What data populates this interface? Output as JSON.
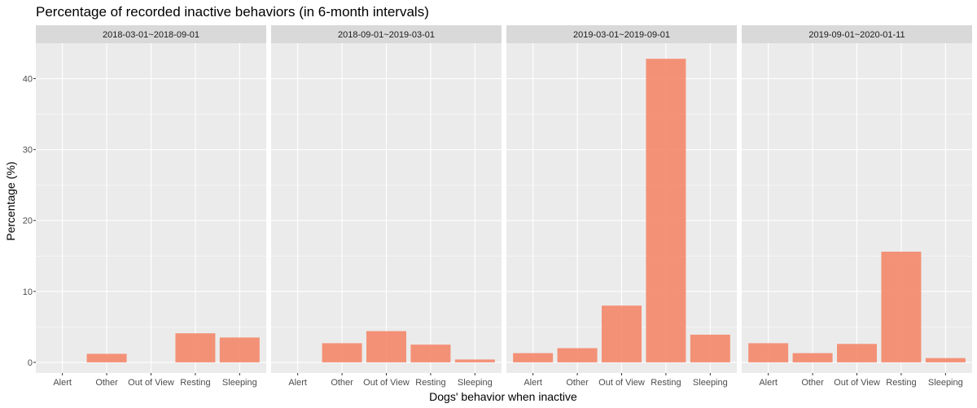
{
  "chart_data": {
    "type": "bar",
    "title": "Percentage of recorded inactive behaviors (in 6-month intervals)",
    "xlabel": "Dogs' behavior when inactive",
    "ylabel": "Percentage (%)",
    "ylim": [
      -1.5,
      45
    ],
    "yticks": [
      0,
      10,
      20,
      30,
      40
    ],
    "grid": true,
    "categories": [
      "Alert",
      "Other",
      "Out of View",
      "Resting",
      "Sleeping"
    ],
    "facets": [
      {
        "label": "2018-03-01~2018-09-01",
        "values": [
          0,
          1.2,
          0,
          4.1,
          3.5
        ]
      },
      {
        "label": "2018-09-01~2019-03-01",
        "values": [
          0,
          2.7,
          4.4,
          2.5,
          0.4
        ]
      },
      {
        "label": "2019-03-01~2019-09-01",
        "values": [
          1.3,
          2.0,
          8.0,
          42.8,
          3.9
        ]
      },
      {
        "label": "2019-09-01~2020-01-11",
        "values": [
          2.7,
          1.3,
          2.6,
          15.6,
          0.6
        ]
      }
    ],
    "colors": {
      "bar": "#F4876A",
      "panel": "#EBEBEB",
      "strip": "#D9D9D9",
      "grid": "#FFFFFF"
    }
  }
}
